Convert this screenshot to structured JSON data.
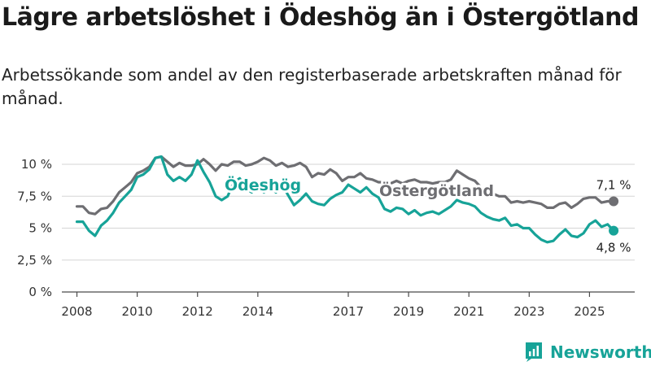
{
  "title": "Lägre arbetslöshet i Ödeshög än i Östergötland",
  "subtitle": "Arbetssökande som andel av den registerbaserade arbetskraften månad för månad.",
  "brand": {
    "name": "Newsworthy",
    "icon": "newsworthy-logo-icon"
  },
  "colors": {
    "odeshog": "#17a398",
    "ostergotland": "#6e6e72",
    "grid": "#d5d5d5",
    "axis": "#4a4a4a"
  },
  "chart_data": {
    "type": "line",
    "title": "Lägre arbetslöshet i Ödeshög än i Östergötland",
    "xlabel": "",
    "ylabel": "",
    "xlim": [
      2007.5,
      2026.5
    ],
    "ylim": [
      0,
      10
    ],
    "y_ticks": [
      0,
      2.5,
      5,
      7.5,
      10
    ],
    "y_tick_labels": [
      "0 %",
      "2,5 %",
      "5 %",
      "7,5 %",
      "10 %"
    ],
    "x_ticks": [
      2008,
      2010,
      2012,
      2014,
      2017,
      2019,
      2021,
      2023,
      2025
    ],
    "x_tick_labels": [
      "2008",
      "2010",
      "2012",
      "2014",
      "2017",
      "2019",
      "2021",
      "2023",
      "2025"
    ],
    "grid": "horizontal",
    "series": [
      {
        "name": "Östergötland",
        "label": "Östergötland",
        "end_label": "7,1 %",
        "points": [
          [
            2008.0,
            6.7
          ],
          [
            2008.2,
            6.7
          ],
          [
            2008.4,
            6.2
          ],
          [
            2008.6,
            6.1
          ],
          [
            2008.8,
            6.5
          ],
          [
            2009.0,
            6.6
          ],
          [
            2009.2,
            7.1
          ],
          [
            2009.4,
            7.8
          ],
          [
            2009.6,
            8.2
          ],
          [
            2009.8,
            8.6
          ],
          [
            2010.0,
            9.3
          ],
          [
            2010.2,
            9.5
          ],
          [
            2010.4,
            9.8
          ],
          [
            2010.6,
            10.5
          ],
          [
            2010.8,
            10.6
          ],
          [
            2011.0,
            10.2
          ],
          [
            2011.2,
            9.8
          ],
          [
            2011.4,
            10.1
          ],
          [
            2011.6,
            9.9
          ],
          [
            2011.8,
            9.9
          ],
          [
            2012.0,
            10.0
          ],
          [
            2012.2,
            10.4
          ],
          [
            2012.4,
            10.0
          ],
          [
            2012.6,
            9.5
          ],
          [
            2012.8,
            10.0
          ],
          [
            2013.0,
            9.9
          ],
          [
            2013.2,
            10.2
          ],
          [
            2013.4,
            10.2
          ],
          [
            2013.6,
            9.9
          ],
          [
            2013.8,
            10.0
          ],
          [
            2014.0,
            10.2
          ],
          [
            2014.2,
            10.5
          ],
          [
            2014.4,
            10.3
          ],
          [
            2014.6,
            9.9
          ],
          [
            2014.8,
            10.1
          ],
          [
            2015.0,
            9.8
          ],
          [
            2015.2,
            9.9
          ],
          [
            2015.4,
            10.1
          ],
          [
            2015.6,
            9.8
          ],
          [
            2015.8,
            9.0
          ],
          [
            2016.0,
            9.3
          ],
          [
            2016.2,
            9.2
          ],
          [
            2016.4,
            9.6
          ],
          [
            2016.6,
            9.3
          ],
          [
            2016.8,
            8.7
          ],
          [
            2017.0,
            9.0
          ],
          [
            2017.2,
            9.0
          ],
          [
            2017.4,
            9.3
          ],
          [
            2017.6,
            8.9
          ],
          [
            2017.8,
            8.8
          ],
          [
            2018.0,
            8.6
          ],
          [
            2018.2,
            8.6
          ],
          [
            2018.4,
            8.5
          ],
          [
            2018.6,
            8.7
          ],
          [
            2018.8,
            8.5
          ],
          [
            2019.0,
            8.7
          ],
          [
            2019.2,
            8.8
          ],
          [
            2019.4,
            8.6
          ],
          [
            2019.6,
            8.6
          ],
          [
            2019.8,
            8.5
          ],
          [
            2020.0,
            8.6
          ],
          [
            2020.2,
            8.6
          ],
          [
            2020.4,
            8.8
          ],
          [
            2020.6,
            9.5
          ],
          [
            2020.8,
            9.2
          ],
          [
            2021.0,
            8.9
          ],
          [
            2021.2,
            8.7
          ],
          [
            2021.4,
            8.2
          ],
          [
            2021.6,
            7.9
          ],
          [
            2021.8,
            7.7
          ],
          [
            2022.0,
            7.5
          ],
          [
            2022.2,
            7.5
          ],
          [
            2022.4,
            7.0
          ],
          [
            2022.6,
            7.1
          ],
          [
            2022.8,
            7.0
          ],
          [
            2023.0,
            7.1
          ],
          [
            2023.2,
            7.0
          ],
          [
            2023.4,
            6.9
          ],
          [
            2023.6,
            6.6
          ],
          [
            2023.8,
            6.6
          ],
          [
            2024.0,
            6.9
          ],
          [
            2024.2,
            7.0
          ],
          [
            2024.4,
            6.6
          ],
          [
            2024.6,
            6.9
          ],
          [
            2024.8,
            7.3
          ],
          [
            2025.0,
            7.4
          ],
          [
            2025.2,
            7.4
          ],
          [
            2025.4,
            7.0
          ],
          [
            2025.6,
            7.1
          ],
          [
            2025.8,
            7.1
          ]
        ]
      },
      {
        "name": "Ödeshög",
        "label": "Ödeshög",
        "end_label": "4,8 %",
        "points": [
          [
            2008.0,
            5.5
          ],
          [
            2008.2,
            5.5
          ],
          [
            2008.4,
            4.8
          ],
          [
            2008.6,
            4.4
          ],
          [
            2008.8,
            5.2
          ],
          [
            2009.0,
            5.6
          ],
          [
            2009.2,
            6.2
          ],
          [
            2009.4,
            7.0
          ],
          [
            2009.6,
            7.5
          ],
          [
            2009.8,
            8.0
          ],
          [
            2010.0,
            9.0
          ],
          [
            2010.2,
            9.2
          ],
          [
            2010.4,
            9.6
          ],
          [
            2010.6,
            10.5
          ],
          [
            2010.8,
            10.6
          ],
          [
            2011.0,
            9.2
          ],
          [
            2011.2,
            8.7
          ],
          [
            2011.4,
            9.0
          ],
          [
            2011.6,
            8.7
          ],
          [
            2011.8,
            9.2
          ],
          [
            2012.0,
            10.3
          ],
          [
            2012.2,
            9.4
          ],
          [
            2012.4,
            8.6
          ],
          [
            2012.6,
            7.5
          ],
          [
            2012.8,
            7.2
          ],
          [
            2013.0,
            7.5
          ],
          [
            2013.2,
            8.6
          ],
          [
            2013.4,
            8.9
          ],
          [
            2013.6,
            8.1
          ],
          [
            2013.8,
            7.8
          ],
          [
            2014.0,
            8.4
          ],
          [
            2014.2,
            7.8
          ],
          [
            2014.4,
            8.2
          ],
          [
            2014.6,
            7.8
          ],
          [
            2014.8,
            8.4
          ],
          [
            2015.0,
            7.6
          ],
          [
            2015.2,
            6.8
          ],
          [
            2015.4,
            7.2
          ],
          [
            2015.6,
            7.7
          ],
          [
            2015.8,
            7.1
          ],
          [
            2016.0,
            6.9
          ],
          [
            2016.2,
            6.8
          ],
          [
            2016.4,
            7.3
          ],
          [
            2016.6,
            7.6
          ],
          [
            2016.8,
            7.8
          ],
          [
            2017.0,
            8.4
          ],
          [
            2017.2,
            8.1
          ],
          [
            2017.4,
            7.8
          ],
          [
            2017.6,
            8.2
          ],
          [
            2017.8,
            7.7
          ],
          [
            2018.0,
            7.4
          ],
          [
            2018.2,
            6.5
          ],
          [
            2018.4,
            6.3
          ],
          [
            2018.6,
            6.6
          ],
          [
            2018.8,
            6.5
          ],
          [
            2019.0,
            6.1
          ],
          [
            2019.2,
            6.4
          ],
          [
            2019.4,
            6.0
          ],
          [
            2019.6,
            6.2
          ],
          [
            2019.8,
            6.3
          ],
          [
            2020.0,
            6.1
          ],
          [
            2020.2,
            6.4
          ],
          [
            2020.4,
            6.7
          ],
          [
            2020.6,
            7.2
          ],
          [
            2020.8,
            7.0
          ],
          [
            2021.0,
            6.9
          ],
          [
            2021.2,
            6.7
          ],
          [
            2021.4,
            6.2
          ],
          [
            2021.6,
            5.9
          ],
          [
            2021.8,
            5.7
          ],
          [
            2022.0,
            5.6
          ],
          [
            2022.2,
            5.8
          ],
          [
            2022.4,
            5.2
          ],
          [
            2022.6,
            5.3
          ],
          [
            2022.8,
            5.0
          ],
          [
            2023.0,
            5.0
          ],
          [
            2023.2,
            4.5
          ],
          [
            2023.4,
            4.1
          ],
          [
            2023.6,
            3.9
          ],
          [
            2023.8,
            4.0
          ],
          [
            2024.0,
            4.5
          ],
          [
            2024.2,
            4.9
          ],
          [
            2024.4,
            4.4
          ],
          [
            2024.6,
            4.3
          ],
          [
            2024.8,
            4.6
          ],
          [
            2025.0,
            5.3
          ],
          [
            2025.2,
            5.6
          ],
          [
            2025.4,
            5.1
          ],
          [
            2025.6,
            5.3
          ],
          [
            2025.8,
            4.8
          ]
        ]
      }
    ]
  }
}
